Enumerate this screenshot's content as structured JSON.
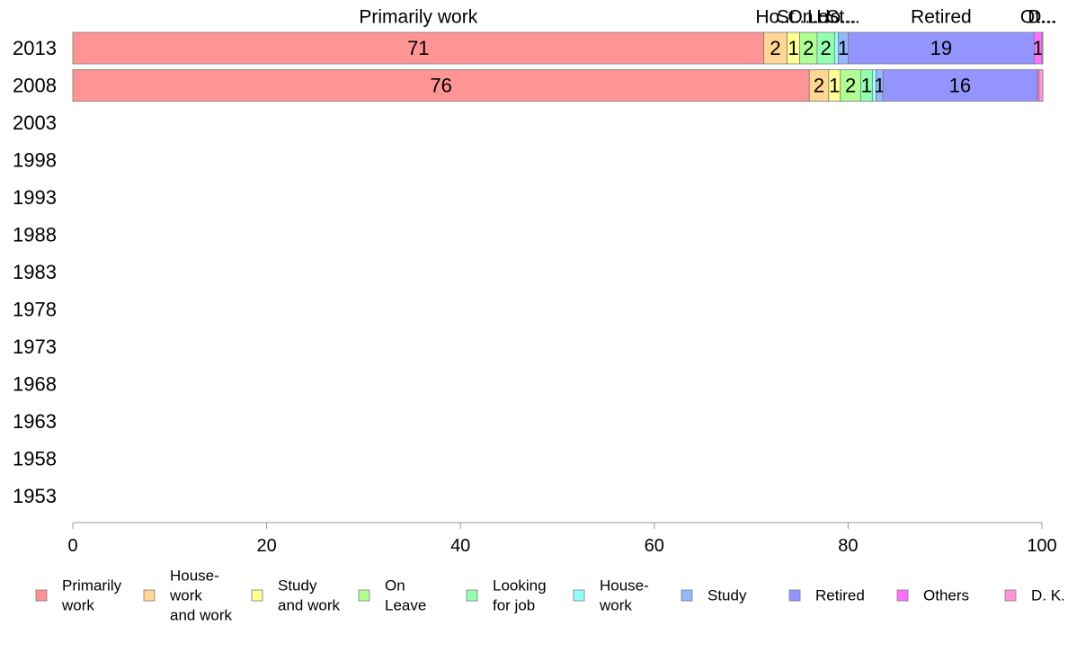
{
  "chart_data": {
    "type": "bar",
    "orientation": "horizontal",
    "stacked": true,
    "percent": true,
    "xlim": [
      0,
      100
    ],
    "x_ticks": [
      0,
      20,
      40,
      60,
      80,
      100
    ],
    "categories": [
      "2013",
      "2008",
      "2003",
      "1998",
      "1993",
      "1988",
      "1983",
      "1978",
      "1973",
      "1968",
      "1963",
      "1958",
      "1953"
    ],
    "top_labels": [
      {
        "series": "Primarily work",
        "text": "Primarily work"
      },
      {
        "series": "House-work and work",
        "text": "Ho..."
      },
      {
        "series": "Study and work",
        "text": "St..."
      },
      {
        "series": "On Leave",
        "text": "On..."
      },
      {
        "series": "Looking for job",
        "text": "Lo..."
      },
      {
        "series": "House-work",
        "text": "Ho..."
      },
      {
        "series": "Study",
        "text": "St..."
      },
      {
        "series": "Retired",
        "text": "Retired"
      },
      {
        "series": "Others",
        "text": "Ot..."
      },
      {
        "series": "D. K.",
        "text": "D..."
      }
    ],
    "series": [
      {
        "name": "Primarily work",
        "legend": [
          "Primarily",
          "work"
        ],
        "color": "#ff9494",
        "values": [
          71.3,
          76.0,
          null,
          null,
          null,
          null,
          null,
          null,
          null,
          null,
          null,
          null,
          null
        ],
        "labels": [
          "71",
          "76",
          "",
          "",
          "",
          "",
          "",
          "",
          "",
          "",
          "",
          "",
          ""
        ]
      },
      {
        "name": "House-work and work",
        "legend": [
          "House-",
          "work",
          "and work"
        ],
        "color": "#ffd694",
        "values": [
          2.4,
          2.0,
          null,
          null,
          null,
          null,
          null,
          null,
          null,
          null,
          null,
          null,
          null
        ],
        "labels": [
          "2",
          "2",
          "",
          "",
          "",
          "",
          "",
          "",
          "",
          "",
          "",
          "",
          ""
        ]
      },
      {
        "name": "Study and work",
        "legend": [
          "Study",
          "and work"
        ],
        "color": "#ffff94",
        "values": [
          1.3,
          1.2,
          null,
          null,
          null,
          null,
          null,
          null,
          null,
          null,
          null,
          null,
          null
        ],
        "labels": [
          "1",
          "1",
          "",
          "",
          "",
          "",
          "",
          "",
          "",
          "",
          "",
          "",
          ""
        ]
      },
      {
        "name": "On Leave",
        "legend": [
          "On",
          "Leave"
        ],
        "color": "#b0ff94",
        "values": [
          1.8,
          2.1,
          null,
          null,
          null,
          null,
          null,
          null,
          null,
          null,
          null,
          null,
          null
        ],
        "labels": [
          "2",
          "2",
          "",
          "",
          "",
          "",
          "",
          "",
          "",
          "",
          "",
          "",
          ""
        ]
      },
      {
        "name": "Looking for job",
        "legend": [
          "Looking",
          "for job"
        ],
        "color": "#94ffb0",
        "values": [
          1.8,
          1.2,
          null,
          null,
          null,
          null,
          null,
          null,
          null,
          null,
          null,
          null,
          null
        ],
        "labels": [
          "2",
          "1",
          "",
          "",
          "",
          "",
          "",
          "",
          "",
          "",
          "",
          "",
          ""
        ]
      },
      {
        "name": "House-work",
        "legend": [
          "House-",
          "work"
        ],
        "color": "#94ffff",
        "values": [
          0.4,
          0.4,
          null,
          null,
          null,
          null,
          null,
          null,
          null,
          null,
          null,
          null,
          null
        ],
        "labels": [
          "",
          "",
          "",
          "",
          "",
          "",
          "",
          "",
          "",
          "",
          "",
          "",
          ""
        ]
      },
      {
        "name": "Study",
        "legend": [
          "Study"
        ],
        "color": "#94b8ff",
        "values": [
          1.0,
          0.7,
          null,
          null,
          null,
          null,
          null,
          null,
          null,
          null,
          null,
          null,
          null
        ],
        "labels": [
          "1",
          "1",
          "",
          "",
          "",
          "",
          "",
          "",
          "",
          "",
          "",
          "",
          ""
        ]
      },
      {
        "name": "Retired",
        "legend": [
          "Retired"
        ],
        "color": "#9494ff",
        "values": [
          19.2,
          15.9,
          null,
          null,
          null,
          null,
          null,
          null,
          null,
          null,
          null,
          null,
          null
        ],
        "labels": [
          "19",
          "16",
          "",
          "",
          "",
          "",
          "",
          "",
          "",
          "",
          "",
          "",
          ""
        ]
      },
      {
        "name": "Others",
        "legend": [
          "Others"
        ],
        "color": "#ff70ff",
        "values": [
          0.8,
          0.2,
          null,
          null,
          null,
          null,
          null,
          null,
          null,
          null,
          null,
          null,
          null
        ],
        "labels": [
          "1",
          "",
          "",
          "",
          "",
          "",
          "",
          "",
          "",
          "",
          "",
          "",
          ""
        ]
      },
      {
        "name": "D. K.",
        "legend": [
          "D. K."
        ],
        "color": "#ff94d6",
        "values": [
          0.1,
          0.4,
          null,
          null,
          null,
          null,
          null,
          null,
          null,
          null,
          null,
          null,
          null
        ],
        "labels": [
          "",
          "",
          "",
          "",
          "",
          "",
          "",
          "",
          "",
          "",
          "",
          "",
          ""
        ]
      }
    ],
    "grid": false,
    "legend_position": "bottom"
  }
}
